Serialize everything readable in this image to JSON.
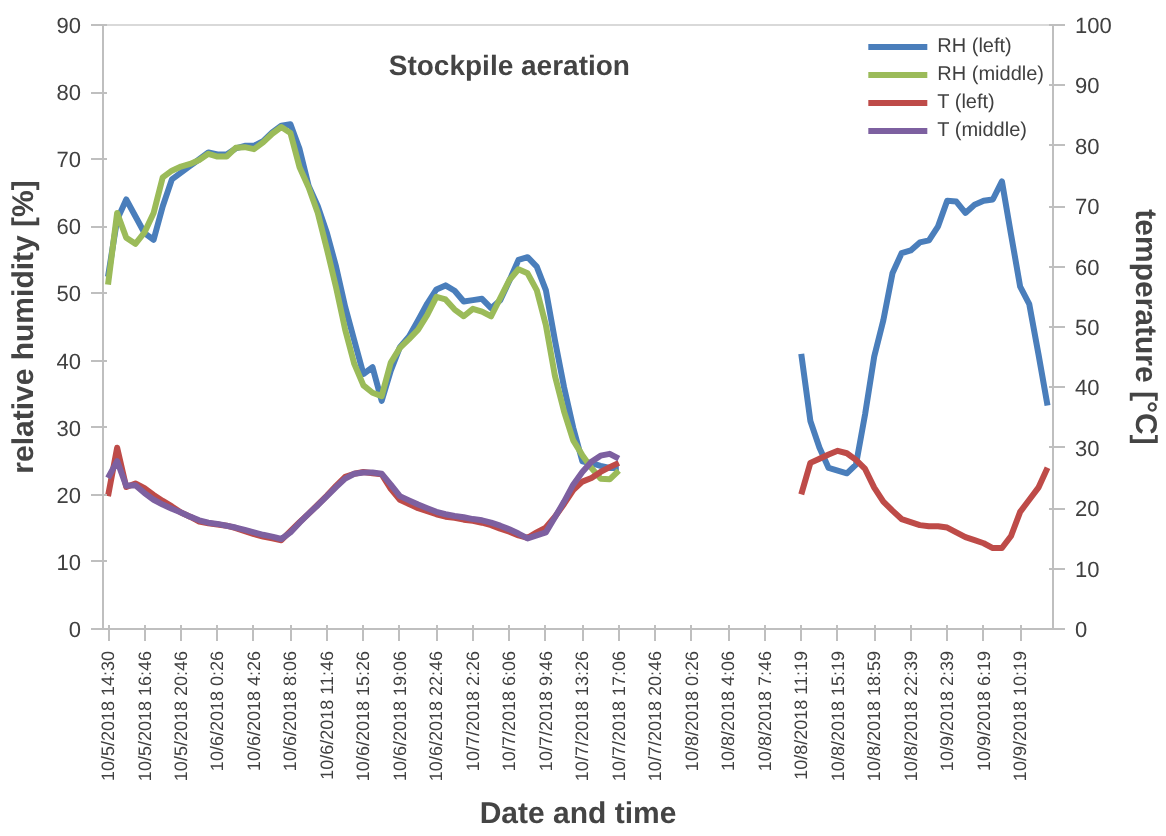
{
  "chart_data": {
    "type": "line",
    "title": "Stockpile aeration",
    "xlabel": "Date and time",
    "ylabel": "relative humidity [%]",
    "y2label": "temperature [°C]",
    "categories": [
      "10/5/2018 14:30",
      null,
      null,
      null,
      "10/5/2018 16:46",
      null,
      null,
      null,
      "10/5/2018 20:46",
      null,
      null,
      null,
      "10/6/2018 0:26",
      null,
      null,
      null,
      "10/6/2018 4:26",
      null,
      null,
      null,
      "10/6/2018 8:06",
      null,
      null,
      null,
      "10/6/2018 11:46",
      null,
      null,
      null,
      "10/6/2018 15:26",
      null,
      null,
      null,
      "10/6/2018 19:06",
      null,
      null,
      null,
      "10/6/2018 22:46",
      null,
      null,
      null,
      "10/7/2018 2:26",
      null,
      null,
      null,
      "10/7/2018 6:06",
      null,
      null,
      null,
      "10/7/2018 9:46",
      null,
      null,
      null,
      "10/7/2018 13:26",
      null,
      null,
      null,
      "10/7/2018 17:06",
      null,
      null,
      null,
      "10/7/2018 20:46",
      null,
      null,
      null,
      "10/8/2018 0:26",
      null,
      null,
      null,
      "10/8/2018 4:06",
      null,
      null,
      null,
      "10/8/2018 7:46",
      null,
      null,
      null,
      "10/8/2018 11:19",
      null,
      null,
      null,
      "10/8/2018 15:19",
      null,
      null,
      null,
      "10/8/2018 18:59",
      null,
      null,
      null,
      "10/8/2018 22:39",
      null,
      null,
      null,
      "10/9/2018 2:39",
      null,
      null,
      null,
      "10/9/2018 6:19",
      null,
      null,
      null,
      "10/9/2018 10:19",
      null,
      null,
      null
    ],
    "ylim": [
      0,
      90
    ],
    "yticks": [
      0,
      10,
      20,
      30,
      40,
      50,
      60,
      70,
      80,
      90
    ],
    "y2lim": [
      0,
      100
    ],
    "y2ticks": [
      0,
      10,
      20,
      30,
      40,
      50,
      60,
      70,
      80,
      90,
      100
    ],
    "grid": false,
    "legend": "top right",
    "marker": "none",
    "line_style": "solid",
    "series": [
      {
        "name": "RH (left)",
        "color": "#4a7ebb",
        "values": [
          52.5,
          61,
          64,
          61.5,
          59,
          58,
          63,
          67,
          68,
          69,
          70,
          71,
          70.7,
          70.7,
          71.6,
          72,
          72,
          72.7,
          74,
          75,
          75.2,
          71.5,
          66,
          63,
          59,
          54,
          48,
          43,
          38,
          39,
          34,
          38.5,
          42,
          43.6,
          46,
          48.5,
          50.6,
          51.2,
          50.4,
          48.8,
          49,
          49.2,
          47.8,
          49,
          51.9,
          55,
          55.4,
          54,
          50.5,
          43,
          36,
          30,
          25,
          24.7,
          24.3,
          24,
          24,
          null,
          null,
          null,
          null,
          null,
          null,
          null,
          null,
          null,
          null,
          null,
          null,
          null,
          null,
          null,
          null,
          null,
          null,
          null,
          41,
          31,
          27,
          24,
          23.6,
          23.2,
          24.5,
          32,
          40.6,
          46,
          53,
          56,
          56.4,
          57.6,
          57.9,
          60,
          63.8,
          63.7,
          62,
          63.2,
          63.8,
          64,
          66.7,
          58.8,
          51,
          48.4,
          41,
          33.3
        ]
      },
      {
        "name": "RH (middle)",
        "color": "#9bbb59",
        "values": [
          51.3,
          62,
          58.3,
          57.4,
          59.1,
          62,
          67.3,
          68.3,
          68.9,
          69.3,
          69.9,
          70.8,
          70.4,
          70.4,
          71.7,
          71.8,
          71.5,
          72.5,
          73.8,
          74.8,
          73.9,
          68.8,
          65.8,
          62,
          56.6,
          50.9,
          44.6,
          39.5,
          36.3,
          35.2,
          34.7,
          39.7,
          41.9,
          43.2,
          44.6,
          46.8,
          49.5,
          49.1,
          47.6,
          46.6,
          47.7,
          47.3,
          46.6,
          49.3,
          52,
          53.6,
          53,
          50.5,
          45.3,
          37.7,
          32.4,
          28.1,
          25.9,
          24,
          22.4,
          22.3,
          23.6,
          null,
          null,
          null,
          null,
          null,
          null,
          null,
          null,
          null,
          null,
          null,
          null,
          null,
          null,
          null,
          null,
          null,
          null,
          null,
          null,
          null,
          null,
          null,
          null,
          null,
          null,
          null,
          null,
          null,
          null,
          null,
          null,
          null,
          null,
          null,
          null,
          null,
          null,
          null,
          null,
          null,
          null,
          null,
          null,
          null,
          null,
          null
        ]
      },
      {
        "name": "T (left)",
        "color": "#be4b48",
        "axis": "y2",
        "values": [
          22,
          30,
          23.5,
          24.1,
          23.3,
          22.2,
          21.2,
          20.3,
          19.3,
          18.6,
          17.8,
          17.5,
          17.3,
          17.1,
          16.7,
          16.2,
          15.7,
          15.3,
          15,
          14.7,
          16.2,
          17.7,
          19.1,
          20.6,
          22.1,
          23.7,
          25.2,
          25.7,
          26,
          25.8,
          25.6,
          23.2,
          21.4,
          20.7,
          20,
          19.5,
          19,
          18.6,
          18.4,
          18.1,
          17.9,
          17.6,
          17.2,
          16.6,
          16.1,
          15.5,
          15.1,
          16,
          16.8,
          18.6,
          20.7,
          23,
          24.4,
          25,
          26,
          26.8,
          27.5,
          null,
          null,
          null,
          null,
          null,
          null,
          null,
          null,
          null,
          null,
          null,
          null,
          null,
          null,
          null,
          null,
          null,
          null,
          null,
          22.3,
          27.5,
          28.2,
          28.9,
          29.5,
          29.1,
          28,
          26.5,
          23.4,
          21.1,
          19.6,
          18.2,
          17.7,
          17.2,
          17,
          17,
          16.8,
          16,
          15.2,
          14.7,
          14.2,
          13.4,
          13.4,
          15.4,
          19.4,
          21.4,
          23.4,
          26.7
        ]
      },
      {
        "name": "T (middle)",
        "color": "#7d60a0",
        "axis": "y2",
        "values": [
          25,
          27.8,
          23.7,
          23.8,
          22.5,
          21.4,
          20.6,
          19.9,
          19.3,
          18.6,
          18,
          17.6,
          17.4,
          17.1,
          16.8,
          16.4,
          16,
          15.6,
          15.3,
          14.9,
          16,
          17.6,
          19.1,
          20.5,
          22,
          23.5,
          24.9,
          25.7,
          25.9,
          25.9,
          25.7,
          23.9,
          22,
          21.3,
          20.6,
          20,
          19.4,
          19,
          18.7,
          18.5,
          18.2,
          18,
          17.6,
          17.1,
          16.5,
          15.8,
          15,
          15.5,
          16,
          18.5,
          21.1,
          23.9,
          26,
          27.7,
          28.7,
          29,
          28.2,
          null,
          null,
          null,
          null,
          null,
          null,
          null,
          null,
          null,
          null,
          null,
          null,
          null,
          null,
          null,
          null,
          null,
          null,
          null,
          null,
          null,
          null,
          null,
          null,
          null,
          null,
          null,
          null,
          null,
          null,
          null,
          null,
          null,
          null,
          null,
          null,
          null,
          null,
          null,
          null,
          null,
          null,
          null,
          null,
          null,
          null,
          null
        ]
      }
    ]
  }
}
